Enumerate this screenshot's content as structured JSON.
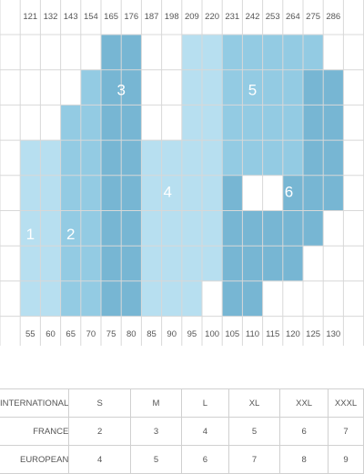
{
  "chart_data": {
    "type": "heatmap",
    "x_ticks": [
      121,
      132,
      143,
      154,
      165,
      176,
      187,
      198,
      209,
      220,
      231,
      242,
      253,
      264,
      275,
      286
    ],
    "y_ticks": [
      55,
      60,
      65,
      70,
      75,
      80,
      85,
      90,
      95,
      100,
      105,
      110,
      115,
      120,
      125,
      130
    ],
    "size_regions": [
      {
        "label": "1",
        "color": "#b7dff0"
      },
      {
        "label": "2",
        "color": "#93cbe3"
      },
      {
        "label": "3",
        "color": "#77b6d3"
      },
      {
        "label": "4",
        "color": "#b7dff0"
      },
      {
        "label": "5",
        "color": "#93cbe3"
      },
      {
        "label": "6",
        "color": "#77b6d3"
      }
    ],
    "grid": true
  },
  "size_table": {
    "rows": [
      {
        "label": "INTERNATIONAL",
        "values": [
          "S",
          "M",
          "L",
          "XL",
          "XXL",
          "XXXL"
        ]
      },
      {
        "label": "FRANCE",
        "values": [
          "2",
          "3",
          "4",
          "5",
          "6",
          "7"
        ]
      },
      {
        "label": "EUROPEAN",
        "values": [
          "4",
          "5",
          "6",
          "7",
          "8",
          "9"
        ]
      }
    ]
  }
}
